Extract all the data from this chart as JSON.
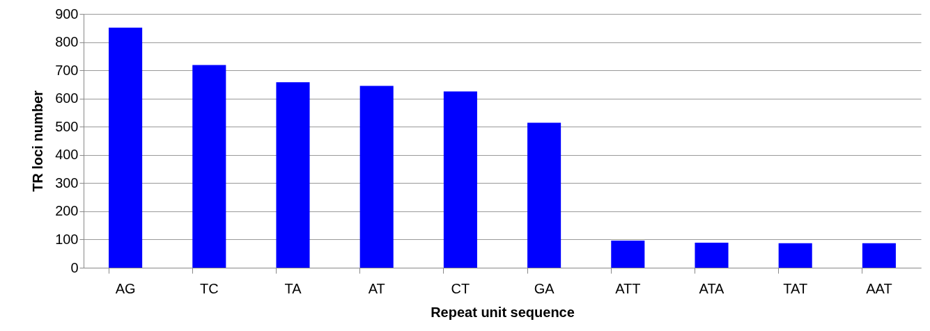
{
  "chart_data": {
    "type": "bar",
    "xlabel": "Repeat unit sequence",
    "ylabel": "TR loci number",
    "categories": [
      "AG",
      "TC",
      "TA",
      "AT",
      "CT",
      "GA",
      "ATT",
      "ATA",
      "TAT",
      "AAT"
    ],
    "values": [
      851,
      719,
      658,
      645,
      625,
      514,
      96,
      89,
      87,
      87
    ],
    "color": "#0000ff",
    "ylim": [
      0,
      900
    ],
    "yticks": [
      0,
      100,
      200,
      300,
      400,
      500,
      600,
      700,
      800,
      900
    ],
    "grid": "y"
  }
}
